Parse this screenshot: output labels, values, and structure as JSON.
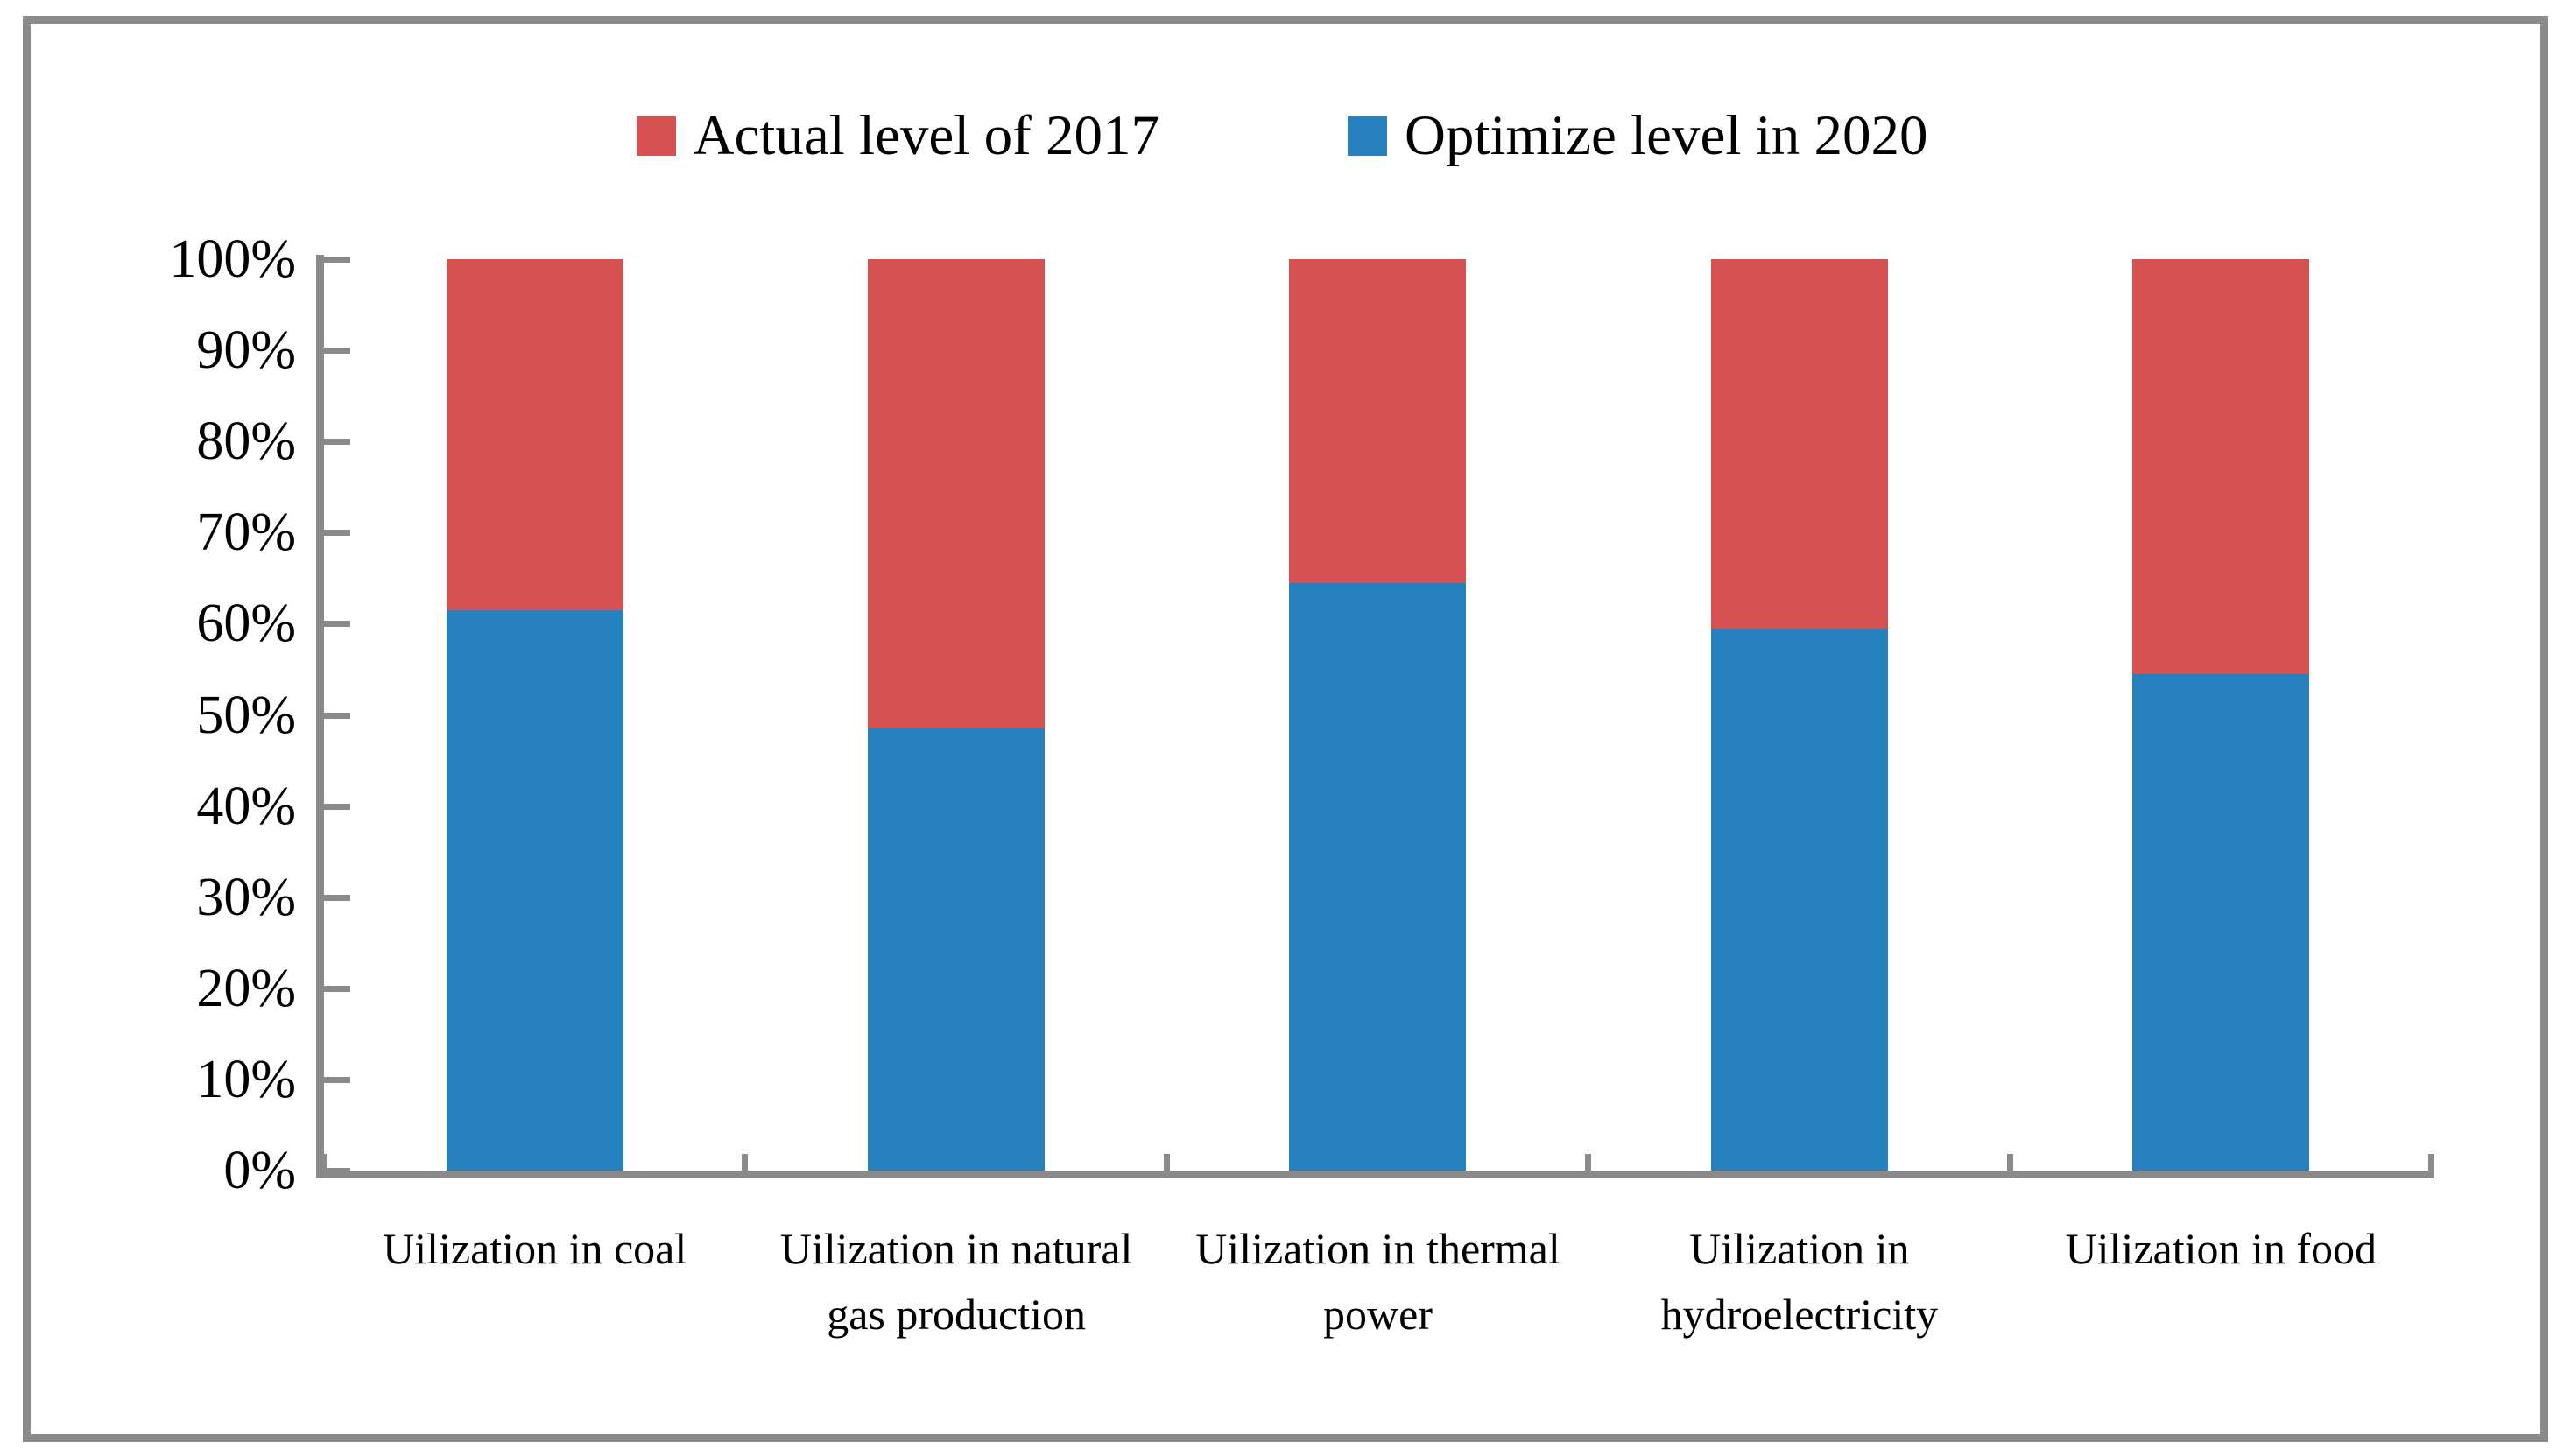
{
  "colors": {
    "red": "#d65151",
    "blue": "#2681be",
    "axis": "#8a8a8a",
    "frame_border": "#8a8a8a",
    "text": "#000000",
    "background": "#ffffff"
  },
  "legend": {
    "entries": [
      {
        "label": "Actual level of 2017",
        "color_key": "red"
      },
      {
        "label": "Optimize level in 2020",
        "color_key": "blue"
      }
    ]
  },
  "chart_data": {
    "type": "bar",
    "subtype": "stacked-100-percent-column",
    "title": "",
    "xlabel": "",
    "ylabel": "",
    "ylim": [
      0,
      100
    ],
    "grid": false,
    "legend_position": "top-center",
    "yticks": [
      "100%",
      "90%",
      "80%",
      "70%",
      "60%",
      "50%",
      "40%",
      "30%",
      "20%",
      "10%",
      "0%"
    ],
    "categories": [
      {
        "label": "Uilization in coal",
        "lines": [
          "Uilization in coal"
        ]
      },
      {
        "label": "Uilization in natural gas production",
        "lines": [
          "Uilization in natural",
          "gas production"
        ]
      },
      {
        "label": "Uilization in thermal power",
        "lines": [
          "Uilization in thermal",
          "power"
        ]
      },
      {
        "label": "Uilization in hydroelectricity",
        "lines": [
          "Uilization in",
          "hydroelectricity"
        ]
      },
      {
        "label": "Uilization in food",
        "lines": [
          "Uilization in food"
        ]
      }
    ],
    "series": [
      {
        "name": "Optimize level in 2020",
        "color_key": "blue",
        "stack_position": "bottom",
        "values": [
          61.5,
          48.5,
          64.5,
          59.5,
          54.5
        ]
      },
      {
        "name": "Actual level of 2017",
        "color_key": "red",
        "stack_position": "top",
        "values": [
          38.5,
          51.5,
          35.5,
          40.5,
          45.5
        ]
      }
    ]
  }
}
